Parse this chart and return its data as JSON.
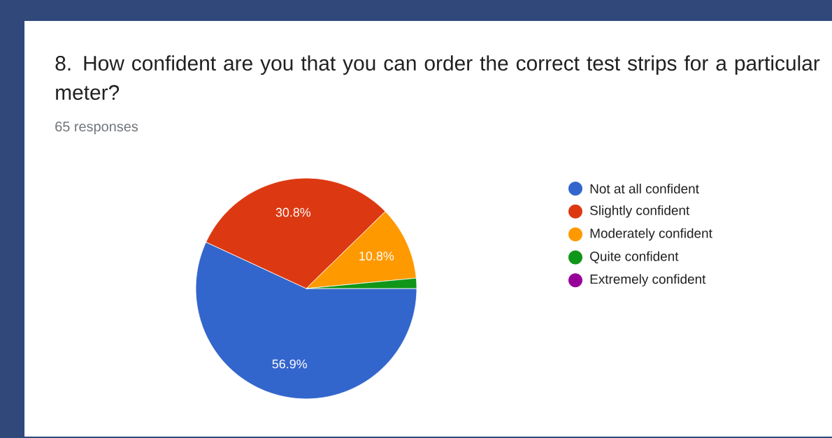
{
  "chart_data": {
    "type": "pie",
    "title": "8. How confident are you that you can order the correct test strips for a particular meter?",
    "subtitle": "65 responses",
    "categories": [
      "Not at all confident",
      "Slightly confident",
      "Moderately confident",
      "Quite confident",
      "Extremely confident"
    ],
    "values": [
      56.9,
      30.8,
      10.8,
      1.5,
      0
    ],
    "colors": [
      "#3366cc",
      "#dc3912",
      "#ff9900",
      "#109618",
      "#990099"
    ],
    "value_labels": [
      "56.9%",
      "30.8%",
      "10.8%",
      null,
      null
    ],
    "legend": "right"
  }
}
